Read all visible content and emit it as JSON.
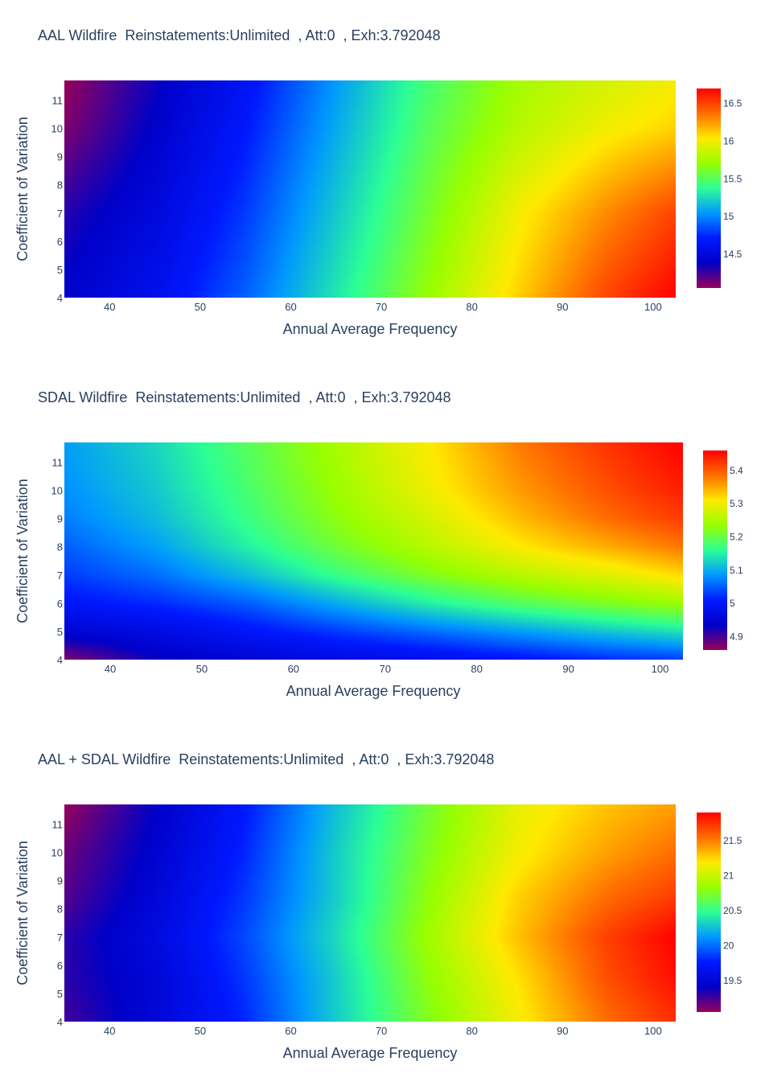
{
  "charts": [
    {
      "title": "AAL Wildfire  Reinstatements:Unlimited  , Att:0  , Exh:3.792048",
      "xlabel": "Annual Average Frequency",
      "ylabel": "Coefficient of Variation",
      "colorbar_ticks": [
        "16.5",
        "16",
        "15.5",
        "15",
        "14.5"
      ]
    },
    {
      "title": "SDAL Wildfire  Reinstatements:Unlimited  , Att:0  , Exh:3.792048",
      "xlabel": "Annual Average Frequency",
      "ylabel": "Coefficient of Variation",
      "colorbar_ticks": [
        "5.4",
        "5.3",
        "5.2",
        "5.1",
        "5",
        "4.9"
      ]
    },
    {
      "title": "AAL + SDAL Wildfire  Reinstatements:Unlimited  , Att:0  , Exh:3.792048",
      "xlabel": "Annual Average Frequency",
      "ylabel": "Coefficient of Variation",
      "colorbar_ticks": [
        "21.5",
        "21",
        "20.5",
        "20",
        "19.5"
      ]
    }
  ],
  "chart_data": [
    {
      "type": "heatmap",
      "title": "AAL Wildfire  Reinstatements:Unlimited  , Att:0  , Exh:3.792048",
      "xlabel": "Annual Average Frequency",
      "ylabel": "Coefficient of Variation",
      "xlim": [
        35,
        102.5
      ],
      "ylim": [
        4,
        11.7
      ],
      "xticks": [
        40,
        50,
        60,
        70,
        80,
        90,
        100
      ],
      "yticks": [
        4,
        5,
        6,
        7,
        8,
        9,
        10,
        11
      ],
      "colorscale": "rainbow",
      "zlim": [
        14.05,
        16.7
      ],
      "colorbar_tick_values": [
        16.5,
        16,
        15.5,
        15,
        14.5
      ],
      "x": [
        35,
        45,
        55,
        65,
        75,
        85,
        95,
        102.5
      ],
      "y": [
        4,
        5.5,
        7,
        8.5,
        10,
        11.7
      ],
      "z": [
        [
          14.4,
          14.6,
          14.9,
          15.3,
          15.7,
          16.1,
          16.5,
          16.7
        ],
        [
          14.35,
          14.55,
          14.85,
          15.25,
          15.65,
          16.05,
          16.4,
          16.6
        ],
        [
          14.3,
          14.5,
          14.8,
          15.2,
          15.6,
          16.0,
          16.3,
          16.5
        ],
        [
          14.2,
          14.45,
          14.75,
          15.15,
          15.55,
          15.9,
          16.15,
          16.3
        ],
        [
          14.1,
          14.4,
          14.7,
          15.1,
          15.5,
          15.8,
          16.0,
          16.1
        ],
        [
          14.05,
          14.35,
          14.65,
          15.05,
          15.45,
          15.75,
          15.9,
          16.0
        ]
      ]
    },
    {
      "type": "heatmap",
      "title": "SDAL Wildfire  Reinstatements:Unlimited  , Att:0  , Exh:3.792048",
      "xlabel": "Annual Average Frequency",
      "ylabel": "Coefficient of Variation",
      "xlim": [
        35,
        102.5
      ],
      "ylim": [
        4,
        11.7
      ],
      "xticks": [
        40,
        50,
        60,
        70,
        80,
        90,
        100
      ],
      "yticks": [
        4,
        5,
        6,
        7,
        8,
        9,
        10,
        11
      ],
      "colorscale": "rainbow",
      "zlim": [
        4.86,
        5.46
      ],
      "colorbar_tick_values": [
        5.4,
        5.3,
        5.2,
        5.1,
        5,
        4.9
      ],
      "x": [
        35,
        45,
        55,
        65,
        75,
        85,
        95,
        102.5
      ],
      "y": [
        4,
        5,
        6,
        7,
        8,
        9,
        10,
        11.7
      ],
      "z": [
        [
          4.87,
          4.93,
          4.95,
          4.97,
          4.98,
          5.0,
          5.02,
          5.03
        ],
        [
          4.95,
          4.97,
          5.0,
          5.03,
          5.06,
          5.09,
          5.12,
          5.14
        ],
        [
          5.0,
          5.02,
          5.05,
          5.1,
          5.15,
          5.19,
          5.22,
          5.24
        ],
        [
          5.03,
          5.06,
          5.11,
          5.17,
          5.22,
          5.26,
          5.29,
          5.32
        ],
        [
          5.05,
          5.09,
          5.15,
          5.21,
          5.26,
          5.31,
          5.35,
          5.38
        ],
        [
          5.07,
          5.11,
          5.17,
          5.23,
          5.28,
          5.34,
          5.39,
          5.42
        ],
        [
          5.08,
          5.12,
          5.18,
          5.24,
          5.3,
          5.36,
          5.41,
          5.44
        ],
        [
          5.09,
          5.13,
          5.19,
          5.25,
          5.31,
          5.38,
          5.43,
          5.46
        ]
      ]
    },
    {
      "type": "heatmap",
      "title": "AAL + SDAL Wildfire  Reinstatements:Unlimited  , Att:0  , Exh:3.792048",
      "xlabel": "Annual Average Frequency",
      "ylabel": "Coefficient of Variation",
      "xlim": [
        35,
        102.5
      ],
      "ylim": [
        4,
        11.7
      ],
      "xticks": [
        40,
        50,
        60,
        70,
        80,
        90,
        100
      ],
      "yticks": [
        4,
        5,
        6,
        7,
        8,
        9,
        10,
        11
      ],
      "colorscale": "rainbow",
      "zlim": [
        19.05,
        21.9
      ],
      "colorbar_tick_values": [
        21.5,
        21,
        20.5,
        20,
        19.5
      ],
      "x": [
        35,
        45,
        55,
        65,
        75,
        85,
        95,
        102.5
      ],
      "y": [
        4,
        5.5,
        7,
        8.5,
        10,
        11.7
      ],
      "z": [
        [
          19.25,
          19.5,
          19.8,
          20.3,
          20.75,
          21.15,
          21.55,
          21.75
        ],
        [
          19.3,
          19.5,
          19.85,
          20.3,
          20.8,
          21.2,
          21.65,
          21.85
        ],
        [
          19.3,
          19.55,
          19.9,
          20.35,
          20.85,
          21.3,
          21.7,
          21.9
        ],
        [
          19.2,
          19.5,
          19.85,
          20.3,
          20.8,
          21.25,
          21.55,
          21.7
        ],
        [
          19.15,
          19.45,
          19.8,
          20.3,
          20.75,
          21.15,
          21.4,
          21.55
        ],
        [
          19.05,
          19.4,
          19.75,
          20.25,
          20.7,
          21.1,
          21.3,
          21.4
        ]
      ]
    }
  ]
}
